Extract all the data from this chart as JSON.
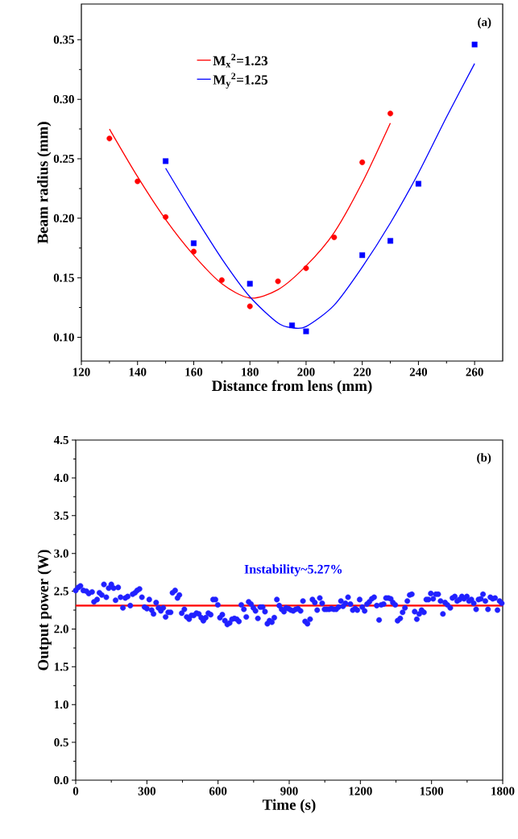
{
  "chart_data": [
    {
      "type": "scatter",
      "xlabel": "Distance from lens (mm)",
      "ylabel": "Beam radius (mm)",
      "xlim": [
        120,
        270
      ],
      "ylim": [
        0.08,
        0.38
      ],
      "xticks": [
        120,
        140,
        160,
        180,
        200,
        220,
        240,
        260
      ],
      "yticks": [
        {
          "value": 0.1,
          "label": "0.10"
        },
        {
          "value": 0.15,
          "label": "0.15"
        },
        {
          "value": 0.2,
          "label": "0.20"
        },
        {
          "value": 0.25,
          "label": "0.25"
        },
        {
          "value": 0.3,
          "label": "0.30"
        },
        {
          "value": 0.35,
          "label": "0.35"
        }
      ],
      "legend": "top",
      "annotations": [
        "(a)"
      ],
      "series": [
        {
          "type": "scatter",
          "marker": "circle",
          "color": "#ff0000",
          "x": [
            130,
            140,
            150,
            160,
            170,
            180,
            190,
            200,
            210,
            220,
            230
          ],
          "values": [
            0.267,
            0.231,
            0.201,
            0.172,
            0.148,
            0.126,
            0.147,
            0.158,
            0.184,
            0.247,
            0.288
          ]
        },
        {
          "type": "line",
          "name": "M$_{x}$$^{2}$=1.23",
          "color": "#ff0000",
          "x": [
            130,
            140,
            150,
            160,
            170,
            180,
            190,
            200,
            210,
            220,
            230
          ],
          "values": [
            0.275,
            0.235,
            0.199,
            0.169,
            0.145,
            0.133,
            0.14,
            0.16,
            0.188,
            0.23,
            0.28
          ]
        },
        {
          "type": "scatter",
          "marker": "square",
          "color": "#0000ff",
          "x": [
            150,
            160,
            180,
            195,
            200,
            220,
            230,
            240,
            260
          ],
          "values": [
            0.248,
            0.179,
            0.145,
            0.11,
            0.105,
            0.169,
            0.181,
            0.229,
            0.346
          ]
        },
        {
          "type": "line",
          "name": "M$_{y}$$^{2}$=1.25",
          "color": "#0000ff",
          "x": [
            150,
            160,
            170,
            180,
            190,
            195,
            200,
            210,
            220,
            230,
            240,
            250,
            260
          ],
          "values": [
            0.242,
            0.203,
            0.166,
            0.134,
            0.112,
            0.108,
            0.109,
            0.127,
            0.159,
            0.196,
            0.238,
            0.285,
            0.33
          ]
        }
      ]
    },
    {
      "type": "scatter",
      "xlabel": "Time (s)",
      "ylabel": "Output power (W)",
      "xlim": [
        0,
        1800
      ],
      "ylim": [
        0,
        4.5
      ],
      "xticks": [
        0,
        300,
        600,
        900,
        1200,
        1500,
        1800
      ],
      "yticks": [
        {
          "value": 0,
          "label": "0.0"
        },
        {
          "value": 0.5,
          "label": "0.5"
        },
        {
          "value": 1,
          "label": "1.0"
        },
        {
          "value": 1.5,
          "label": "1.5"
        },
        {
          "value": 2,
          "label": "2.0"
        },
        {
          "value": 2.5,
          "label": "2.5"
        },
        {
          "value": 3,
          "label": "3.0"
        },
        {
          "value": 3.5,
          "label": "3.5"
        },
        {
          "value": 4,
          "label": "4.0"
        },
        {
          "value": 4.5,
          "label": "4.5"
        }
      ],
      "annotations": [
        "(b)",
        "Instability~5.27%"
      ],
      "ref_lines": [
        {
          "axis": "y",
          "value": 2.31,
          "color": "#ff0000"
        }
      ],
      "series": [
        {
          "type": "scatter",
          "marker": "circle",
          "color": "#2020ff",
          "x": [
            0,
            11,
            20,
            32,
            45,
            55,
            69,
            77,
            90,
            100,
            110,
            119,
            129,
            139,
            150,
            160,
            168,
            179,
            189,
            199,
            209,
            219,
            230,
            240,
            250,
            259,
            269,
            279,
            290,
            300,
            310,
            320,
            328,
            339,
            349,
            359,
            369,
            379,
            390,
            400,
            408,
            419,
            429,
            437,
            447,
            458,
            468,
            478,
            488,
            498,
            509,
            519,
            529,
            538,
            548,
            559,
            569,
            579,
            589,
            599,
            608,
            618,
            629,
            639,
            649,
            659,
            669,
            679,
            688,
            698,
            709,
            719,
            729,
            739,
            749,
            758,
            768,
            778,
            788,
            798,
            808,
            817,
            827,
            837,
            848,
            858,
            868,
            878,
            887,
            897,
            907,
            917,
            927,
            937,
            948,
            958,
            967,
            977,
            988,
            998,
            1008,
            1018,
            1029,
            1039,
            1049,
            1058,
            1068,
            1078,
            1088,
            1098,
            1108,
            1118,
            1127,
            1137,
            1148,
            1158,
            1168,
            1178,
            1187,
            1197,
            1208,
            1218,
            1228,
            1238,
            1248,
            1258,
            1269,
            1279,
            1288,
            1298,
            1308,
            1318,
            1328,
            1337,
            1347,
            1357,
            1368,
            1378,
            1388,
            1398,
            1408,
            1417,
            1429,
            1438,
            1448,
            1458,
            1468,
            1478,
            1487,
            1497,
            1507,
            1518,
            1528,
            1538,
            1548,
            1557,
            1567,
            1579,
            1588,
            1598,
            1608,
            1618,
            1628,
            1637,
            1649,
            1658,
            1668,
            1678,
            1688,
            1698,
            1708,
            1717,
            1727,
            1738,
            1748,
            1758,
            1768,
            1778,
            1787,
            1796
          ],
          "values": [
            2.51,
            2.55,
            2.57,
            2.51,
            2.5,
            2.47,
            2.49,
            2.36,
            2.39,
            2.48,
            2.45,
            2.59,
            2.42,
            2.54,
            2.59,
            2.54,
            2.38,
            2.55,
            2.42,
            2.28,
            2.41,
            2.43,
            2.31,
            2.46,
            2.48,
            2.51,
            2.53,
            2.42,
            2.29,
            2.27,
            2.39,
            2.25,
            2.2,
            2.35,
            2.28,
            2.24,
            2.28,
            2.16,
            2.22,
            2.22,
            2.48,
            2.51,
            2.41,
            2.45,
            2.21,
            2.26,
            2.16,
            2.13,
            2.18,
            2.18,
            2.21,
            2.2,
            2.15,
            2.11,
            2.15,
            2.21,
            2.19,
            2.39,
            2.39,
            2.32,
            2.15,
            2.19,
            2.11,
            2.06,
            2.08,
            2.13,
            2.14,
            2.13,
            2.1,
            2.32,
            2.26,
            2.16,
            2.36,
            2.33,
            2.28,
            2.24,
            2.14,
            2.29,
            2.29,
            2.23,
            2.07,
            2.11,
            2.09,
            2.15,
            2.39,
            2.31,
            2.26,
            2.23,
            2.28,
            2.27,
            2.25,
            2.24,
            2.26,
            2.27,
            2.24,
            2.37,
            2.1,
            2.07,
            2.13,
            2.39,
            2.35,
            2.25,
            2.41,
            2.34,
            2.26,
            2.26,
            2.26,
            2.27,
            2.26,
            2.26,
            2.29,
            2.37,
            2.3,
            2.34,
            2.42,
            2.33,
            2.25,
            2.27,
            2.25,
            2.39,
            2.29,
            2.24,
            2.33,
            2.36,
            2.4,
            2.42,
            2.31,
            2.12,
            2.32,
            2.33,
            2.41,
            2.41,
            2.4,
            2.35,
            2.32,
            2.11,
            2.14,
            2.22,
            2.28,
            2.37,
            2.45,
            2.46,
            2.23,
            2.13,
            2.2,
            2.25,
            2.22,
            2.39,
            2.39,
            2.47,
            2.4,
            2.46,
            2.46,
            2.37,
            2.2,
            2.35,
            2.32,
            2.28,
            2.41,
            2.43,
            2.37,
            2.39,
            2.43,
            2.4,
            2.43,
            2.37,
            2.39,
            2.34,
            2.26,
            2.39,
            2.4,
            2.46,
            2.37,
            2.26,
            2.42,
            2.4,
            2.41,
            2.25,
            2.37,
            2.34
          ]
        }
      ]
    }
  ]
}
